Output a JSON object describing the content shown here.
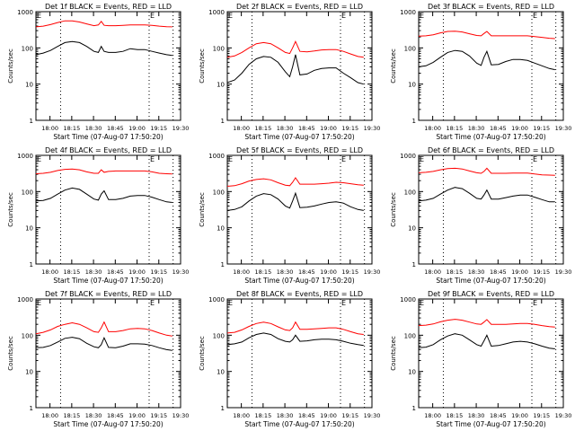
{
  "chart_data": {
    "type": "line",
    "layout": "3x3 grid",
    "shared": {
      "x_tick_labels": [
        "18:00",
        "18:15",
        "18:30",
        "18:45",
        "19:00",
        "19:15",
        "19:30"
      ],
      "x_tick_minutes": [
        9.67,
        24.67,
        39.67,
        54.67,
        69.67,
        84.67,
        99.67
      ],
      "x_range_minutes": [
        0,
        99.67
      ],
      "xlabel": "Start Time (07-Aug-07 17:50:20)",
      "ylabel": "Counts/sec",
      "y_scale": "log",
      "ylim": [
        1,
        1000
      ],
      "y_tick_labels": [
        "1",
        "10",
        "100",
        "1000"
      ],
      "y_tick_values": [
        1,
        10,
        100,
        1000
      ],
      "vlines_minutes": [
        17,
        78,
        94.5
      ],
      "e_markers_minutes": [
        0,
        78
      ],
      "e_marker_label": "E",
      "legend_colors": {
        "events": "#000000",
        "lld": "#ff0000"
      }
    },
    "x_minutes": [
      0,
      5,
      10,
      15,
      20,
      25,
      30,
      35,
      40,
      43,
      45,
      47,
      50,
      55,
      60,
      65,
      70,
      75,
      80,
      85,
      90,
      94
    ],
    "panels": [
      {
        "title": "Det 1f BLACK = Events, RED = LLD",
        "series": [
          {
            "name": "Events",
            "color": "#000000",
            "values": [
              65,
              72,
              85,
              110,
              140,
              150,
              140,
              110,
              80,
              75,
              110,
              80,
              75,
              75,
              80,
              95,
              90,
              90,
              80,
              72,
              65,
              62
            ]
          },
          {
            "name": "LLD",
            "color": "#ff0000",
            "values": [
              380,
              400,
              440,
              500,
              560,
              560,
              520,
              460,
              410,
              430,
              540,
              420,
              410,
              410,
              420,
              430,
              430,
              430,
              420,
              400,
              385,
              380
            ]
          }
        ]
      },
      {
        "title": "Det 2f BLACK = Events, RED = LLD",
        "series": [
          {
            "name": "Events",
            "color": "#000000",
            "values": [
              11,
              13,
              20,
              35,
              50,
              58,
              55,
              40,
              22,
              16,
              30,
              65,
              18,
              19,
              24,
              27,
              28,
              28,
              20,
              15,
              11,
              10
            ]
          },
          {
            "name": "LLD",
            "color": "#ff0000",
            "values": [
              55,
              60,
              75,
              100,
              130,
              140,
              130,
              100,
              75,
              70,
              100,
              150,
              80,
              78,
              82,
              88,
              90,
              90,
              80,
              68,
              58,
              55
            ]
          }
        ]
      },
      {
        "title": "Det 3f BLACK = Events, RED = LLD",
        "series": [
          {
            "name": "Events",
            "color": "#000000",
            "values": [
              30,
              32,
              40,
              55,
              75,
              85,
              80,
              60,
              38,
              33,
              55,
              80,
              34,
              35,
              42,
              48,
              48,
              45,
              38,
              32,
              27,
              25
            ]
          },
          {
            "name": "LLD",
            "color": "#ff0000",
            "values": [
              210,
              215,
              230,
              260,
              285,
              290,
              275,
              245,
              220,
              215,
              250,
              285,
              215,
              215,
              215,
              215,
              215,
              215,
              205,
              195,
              185,
              180
            ]
          }
        ]
      },
      {
        "title": "Det 4f BLACK = Events, RED = LLD",
        "series": [
          {
            "name": "Events",
            "color": "#000000",
            "values": [
              55,
              57,
              65,
              85,
              110,
              125,
              115,
              85,
              62,
              58,
              85,
              105,
              60,
              60,
              65,
              75,
              78,
              78,
              70,
              60,
              52,
              50
            ]
          },
          {
            "name": "LLD",
            "color": "#ff0000",
            "values": [
              310,
              320,
              340,
              380,
              410,
              420,
              400,
              350,
              320,
              320,
              400,
              340,
              360,
              370,
              370,
              370,
              370,
              370,
              350,
              320,
              310,
              305
            ]
          }
        ]
      },
      {
        "title": "Det 5f BLACK = Events, RED = LLD",
        "series": [
          {
            "name": "Events",
            "color": "#000000",
            "values": [
              30,
              32,
              38,
              55,
              75,
              88,
              82,
              62,
              40,
              35,
              55,
              90,
              36,
              37,
              40,
              45,
              50,
              52,
              48,
              38,
              32,
              30
            ]
          },
          {
            "name": "LLD",
            "color": "#ff0000",
            "values": [
              140,
              145,
              165,
              195,
              215,
              225,
              210,
              175,
              150,
              145,
              180,
              240,
              160,
              160,
              160,
              165,
              170,
              180,
              175,
              165,
              155,
              150
            ]
          }
        ]
      },
      {
        "title": "Det 6f BLACK = Events, RED = LLD",
        "series": [
          {
            "name": "Events",
            "color": "#000000",
            "values": [
              55,
              58,
              65,
              85,
              110,
              130,
              120,
              90,
              65,
              62,
              80,
              110,
              62,
              62,
              68,
              75,
              80,
              80,
              70,
              60,
              52,
              52
            ]
          },
          {
            "name": "LLD",
            "color": "#ff0000",
            "values": [
              330,
              340,
              360,
              400,
              430,
              440,
              420,
              370,
              330,
              320,
              360,
              440,
              320,
              320,
              320,
              325,
              325,
              325,
              305,
              290,
              285,
              280
            ]
          }
        ]
      },
      {
        "title": "Det 7f BLACK = Events, RED = LLD",
        "series": [
          {
            "name": "Events",
            "color": "#000000",
            "values": [
              45,
              46,
              52,
              65,
              82,
              88,
              80,
              60,
              48,
              45,
              55,
              85,
              46,
              45,
              50,
              58,
              58,
              57,
              52,
              45,
              40,
              38
            ]
          },
          {
            "name": "LLD",
            "color": "#ff0000",
            "values": [
              110,
              120,
              140,
              175,
              200,
              220,
              200,
              160,
              125,
              120,
              160,
              230,
              125,
              125,
              135,
              150,
              155,
              150,
              135,
              115,
              100,
              95
            ]
          }
        ]
      },
      {
        "title": "Det 8f BLACK = Events, RED = LLD",
        "series": [
          {
            "name": "Events",
            "color": "#000000",
            "values": [
              55,
              58,
              65,
              85,
              105,
              115,
              105,
              80,
              68,
              65,
              75,
              100,
              68,
              70,
              75,
              78,
              78,
              75,
              68,
              60,
              55,
              52
            ]
          },
          {
            "name": "LLD",
            "color": "#ff0000",
            "values": [
              115,
              120,
              140,
              175,
              210,
              230,
              210,
              170,
              140,
              135,
              160,
              230,
              145,
              145,
              150,
              155,
              160,
              160,
              145,
              125,
              110,
              105
            ]
          }
        ]
      },
      {
        "title": "Det 9f BLACK = Events, RED = LLD",
        "series": [
          {
            "name": "Events",
            "color": "#000000",
            "values": [
              45,
              47,
              55,
              75,
              95,
              110,
              100,
              75,
              55,
              50,
              70,
              100,
              50,
              52,
              58,
              65,
              68,
              65,
              58,
              50,
              44,
              42
            ]
          },
          {
            "name": "LLD",
            "color": "#ff0000",
            "values": [
              185,
              190,
              205,
              235,
              260,
              275,
              260,
              230,
              205,
              200,
              230,
              270,
              200,
              200,
              200,
              205,
              210,
              210,
              200,
              185,
              172,
              168
            ]
          }
        ]
      }
    ]
  }
}
